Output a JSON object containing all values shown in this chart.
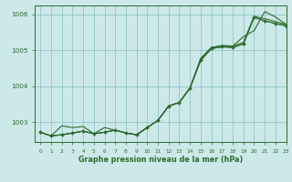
{
  "title": "Graphe pression niveau de la mer (hPa)",
  "background_color": "#cce8e8",
  "grid_color": "#99cccc",
  "line_color": "#2d6b2d",
  "xlim": [
    -0.5,
    23
  ],
  "ylim": [
    1002.45,
    1006.25
  ],
  "yticks": [
    1003,
    1004,
    1005,
    1006
  ],
  "xticks": [
    0,
    1,
    2,
    3,
    4,
    5,
    6,
    7,
    8,
    9,
    10,
    11,
    12,
    13,
    14,
    15,
    16,
    17,
    18,
    19,
    20,
    21,
    22,
    23
  ],
  "series1": [
    1002.72,
    1002.62,
    1002.65,
    1002.7,
    1002.75,
    1002.68,
    1002.72,
    1002.78,
    1002.7,
    1002.65,
    1002.85,
    1003.05,
    1003.45,
    1003.55,
    1003.95,
    1004.72,
    1005.05,
    1005.1,
    1005.08,
    1005.18,
    1005.92,
    1005.82,
    1005.75,
    1005.68
  ],
  "series2": [
    1002.72,
    1002.62,
    1002.65,
    1002.7,
    1002.75,
    1002.68,
    1002.72,
    1002.78,
    1002.7,
    1002.65,
    1002.85,
    1003.05,
    1003.45,
    1003.55,
    1003.95,
    1004.75,
    1005.08,
    1005.13,
    1005.12,
    1005.22,
    1005.95,
    1005.88,
    1005.8,
    1005.72
  ],
  "series3": [
    1002.72,
    1002.62,
    1002.9,
    1002.85,
    1002.88,
    1002.68,
    1002.85,
    1002.78,
    1002.7,
    1002.65,
    1002.85,
    1003.05,
    1003.45,
    1003.55,
    1003.95,
    1004.78,
    1005.08,
    1005.13,
    1005.12,
    1005.38,
    1005.55,
    1006.08,
    1005.93,
    1005.72
  ],
  "series_main": [
    1002.72,
    1002.62,
    1002.65,
    1002.7,
    1002.75,
    1002.68,
    1002.72,
    1002.78,
    1002.7,
    1002.65,
    1002.85,
    1003.05,
    1003.45,
    1003.55,
    1003.95,
    1004.72,
    1005.05,
    1005.1,
    1005.08,
    1005.18,
    1005.92,
    1005.82,
    1005.75,
    1005.68
  ],
  "figsize": [
    3.2,
    2.0
  ],
  "dpi": 100
}
